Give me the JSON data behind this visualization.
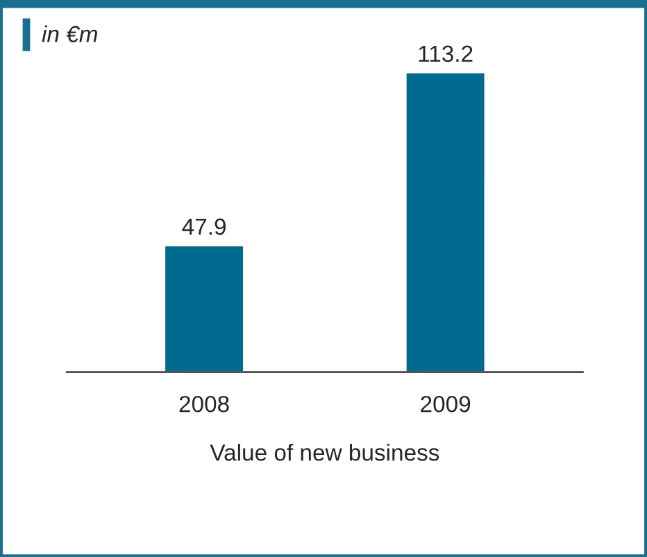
{
  "chart_data": {
    "type": "bar",
    "title": "in €m",
    "xlabel": "Value of new business",
    "categories": [
      "2008",
      "2009"
    ],
    "values": [
      47.9,
      113.2
    ],
    "color": "#006a8f",
    "data_labels": true,
    "grid": false,
    "legend": false
  }
}
